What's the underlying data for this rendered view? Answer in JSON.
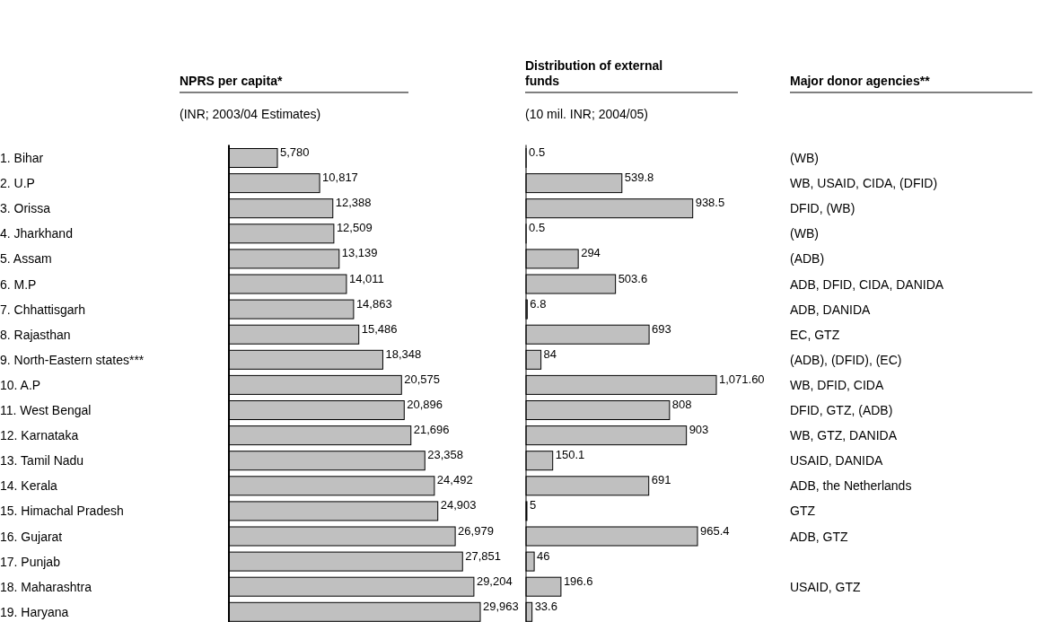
{
  "chart_data": [
    {
      "type": "bar",
      "orientation": "horizontal",
      "title": "NPRS per capita*",
      "subtitle": "(INR; 2003/04 Estimates)",
      "categories": [
        "1. Bihar",
        "2. U.P",
        "3. Orissa",
        "4. Jharkhand",
        "5. Assam",
        "6. M.P",
        "7. Chhattisgarh",
        "8. Rajasthan",
        "9. North-Eastern states***",
        "10. A.P",
        "11. West Bengal",
        "12. Karnataka",
        "13. Tamil Nadu",
        "14. Kerala",
        "15. Himachal Pradesh",
        "16. Gujarat",
        "17. Punjab",
        "18. Maharashtra",
        "19. Haryana"
      ],
      "values": [
        5780,
        10817,
        12388,
        12509,
        13139,
        14011,
        14863,
        15486,
        18348,
        20575,
        20896,
        21696,
        23358,
        24492,
        24903,
        26979,
        27851,
        29204,
        29963
      ],
      "value_labels": [
        "5,780",
        "10,817",
        "12,388",
        "12,509",
        "13,139",
        "14,011",
        "14,863",
        "15,486",
        "18,348",
        "20,575",
        "20,896",
        "21,696",
        "23,358",
        "24,492",
        "24,903",
        "26,979",
        "27,851",
        "29,204",
        "29,963"
      ],
      "color": "#c0c0c0"
    },
    {
      "type": "bar",
      "orientation": "horizontal",
      "title": "Distribution of external funds",
      "subtitle": "(10 mil. INR; 2004/05)",
      "categories": [
        null,
        null,
        null,
        null,
        null,
        null,
        null,
        null,
        null,
        null,
        null,
        null,
        null,
        null,
        null,
        null,
        null,
        null,
        null
      ],
      "values": [
        0.5,
        539.8,
        938.5,
        0.5,
        294,
        503.6,
        6.8,
        693,
        84,
        1071.6,
        808,
        903,
        150.1,
        691,
        5,
        965.4,
        46,
        196.6,
        33.6
      ],
      "value_labels": [
        "0.5",
        "539.8",
        "938.5",
        "0.5",
        "294",
        "503.6",
        "6.8",
        "693",
        "84",
        "1,071.60",
        "808",
        "903",
        "150.1",
        "691",
        "5",
        "965.4",
        "46",
        "196.6",
        "33.6"
      ],
      "color": "#c0c0c0"
    },
    {
      "type": "other",
      "title": "Major donor agencies**",
      "categories": [
        "(WB)",
        "WB, USAID, CIDA, (DFID)",
        "DFID, (WB)",
        "(WB)",
        "(ADB)",
        "ADB, DFID, CIDA, DANIDA",
        "ADB, DANIDA",
        "EC, GTZ",
        "(ADB), (DFID), (EC)",
        "WB, DFID, CIDA",
        "DFID, GTZ, (ADB)",
        "WB, GTZ, DANIDA",
        "USAID, DANIDA",
        "ADB, the Netherlands",
        "GTZ",
        "ADB, GTZ",
        null,
        "USAID, GTZ",
        null
      ]
    }
  ]
}
